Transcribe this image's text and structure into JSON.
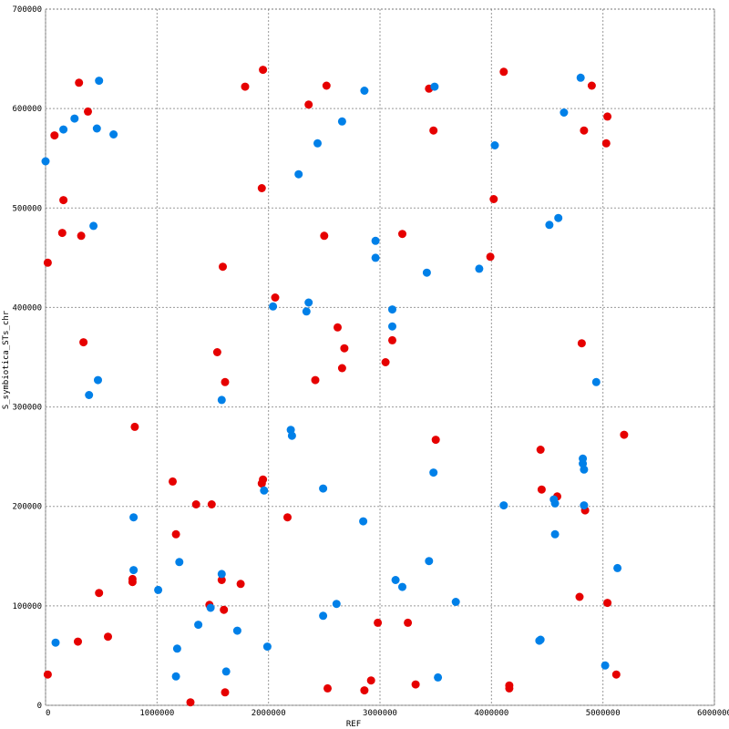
{
  "chart_data": {
    "type": "scatter",
    "title": "",
    "xlabel": "REF",
    "ylabel": "S_symbiotica_STs_chr",
    "xlim": [
      0,
      6000000
    ],
    "ylim": [
      0,
      700000
    ],
    "x_ticks": [
      0,
      1000000,
      2000000,
      3000000,
      4000000,
      5000000,
      6000000
    ],
    "y_ticks": [
      0,
      100000,
      200000,
      300000,
      400000,
      500000,
      600000,
      700000
    ],
    "x_tick_labels": [
      "0",
      "1000000",
      "2000000",
      "3000000",
      "4000000",
      "5000000",
      "6000000"
    ],
    "y_tick_labels": [
      "0",
      "100000",
      "200000",
      "300000",
      "400000",
      "500000",
      "600000",
      "700000"
    ],
    "grid": true,
    "series": [
      {
        "color": "#e60000",
        "points": [
          [
            20000,
            31000
          ],
          [
            20000,
            445000
          ],
          [
            80000,
            573000
          ],
          [
            150000,
            475000
          ],
          [
            160000,
            508000
          ],
          [
            300000,
            626000
          ],
          [
            320000,
            472000
          ],
          [
            340000,
            365000
          ],
          [
            380000,
            597000
          ],
          [
            290000,
            64000
          ],
          [
            480000,
            113000
          ],
          [
            560000,
            69000
          ],
          [
            780000,
            127000
          ],
          [
            780000,
            124000
          ],
          [
            800000,
            280000
          ],
          [
            1140000,
            225000
          ],
          [
            1170000,
            172000
          ],
          [
            1350000,
            202000
          ],
          [
            1300000,
            3000
          ],
          [
            1490000,
            202000
          ],
          [
            1470000,
            101000
          ],
          [
            1540000,
            355000
          ],
          [
            1580000,
            126000
          ],
          [
            1600000,
            96000
          ],
          [
            1590000,
            441000
          ],
          [
            1610000,
            325000
          ],
          [
            1610000,
            13000
          ],
          [
            1750000,
            122000
          ],
          [
            1790000,
            622000
          ],
          [
            1940000,
            520000
          ],
          [
            1950000,
            639000
          ],
          [
            1940000,
            223000
          ],
          [
            1950000,
            227000
          ],
          [
            2060000,
            410000
          ],
          [
            2170000,
            189000
          ],
          [
            2360000,
            604000
          ],
          [
            2420000,
            327000
          ],
          [
            2500000,
            472000
          ],
          [
            2520000,
            623000
          ],
          [
            2530000,
            17000
          ],
          [
            2620000,
            380000
          ],
          [
            2660000,
            339000
          ],
          [
            2680000,
            359000
          ],
          [
            2860000,
            15000
          ],
          [
            2920000,
            25000
          ],
          [
            2980000,
            83000
          ],
          [
            3050000,
            345000
          ],
          [
            3110000,
            367000
          ],
          [
            3200000,
            474000
          ],
          [
            3250000,
            83000
          ],
          [
            3320000,
            21000
          ],
          [
            3440000,
            620000
          ],
          [
            3480000,
            578000
          ],
          [
            3500000,
            267000
          ],
          [
            3990000,
            451000
          ],
          [
            4020000,
            509000
          ],
          [
            4110000,
            637000
          ],
          [
            4160000,
            20000
          ],
          [
            4160000,
            17000
          ],
          [
            4440000,
            257000
          ],
          [
            4450000,
            217000
          ],
          [
            4590000,
            210000
          ],
          [
            4790000,
            109000
          ],
          [
            4810000,
            364000
          ],
          [
            4830000,
            578000
          ],
          [
            4840000,
            196000
          ],
          [
            4900000,
            623000
          ],
          [
            5030000,
            565000
          ],
          [
            5040000,
            592000
          ],
          [
            5040000,
            103000
          ],
          [
            5120000,
            31000
          ],
          [
            5190000,
            272000
          ]
        ]
      },
      {
        "color": "#0080e8",
        "points": [
          [
            0,
            547000
          ],
          [
            90000,
            63000
          ],
          [
            160000,
            579000
          ],
          [
            260000,
            590000
          ],
          [
            390000,
            312000
          ],
          [
            430000,
            482000
          ],
          [
            460000,
            580000
          ],
          [
            470000,
            327000
          ],
          [
            480000,
            628000
          ],
          [
            610000,
            574000
          ],
          [
            790000,
            189000
          ],
          [
            790000,
            136000
          ],
          [
            1010000,
            116000
          ],
          [
            1170000,
            29000
          ],
          [
            1180000,
            57000
          ],
          [
            1200000,
            144000
          ],
          [
            1370000,
            81000
          ],
          [
            1480000,
            98000
          ],
          [
            1580000,
            307000
          ],
          [
            1580000,
            132000
          ],
          [
            1620000,
            34000
          ],
          [
            1720000,
            75000
          ],
          [
            1960000,
            216000
          ],
          [
            1990000,
            59000
          ],
          [
            2040000,
            401000
          ],
          [
            2200000,
            277000
          ],
          [
            2210000,
            271000
          ],
          [
            2270000,
            534000
          ],
          [
            2340000,
            396000
          ],
          [
            2360000,
            405000
          ],
          [
            2440000,
            565000
          ],
          [
            2490000,
            90000
          ],
          [
            2490000,
            218000
          ],
          [
            2610000,
            102000
          ],
          [
            2660000,
            587000
          ],
          [
            2850000,
            185000
          ],
          [
            2860000,
            618000
          ],
          [
            2960000,
            467000
          ],
          [
            2960000,
            450000
          ],
          [
            3110000,
            398000
          ],
          [
            3110000,
            381000
          ],
          [
            3140000,
            126000
          ],
          [
            3200000,
            119000
          ],
          [
            3420000,
            435000
          ],
          [
            3440000,
            145000
          ],
          [
            3480000,
            234000
          ],
          [
            3490000,
            622000
          ],
          [
            3520000,
            28000
          ],
          [
            3680000,
            104000
          ],
          [
            3890000,
            439000
          ],
          [
            4030000,
            563000
          ],
          [
            4110000,
            201000
          ],
          [
            4430000,
            65000
          ],
          [
            4440000,
            66000
          ],
          [
            4520000,
            483000
          ],
          [
            4560000,
            207000
          ],
          [
            4570000,
            203000
          ],
          [
            4570000,
            172000
          ],
          [
            4600000,
            490000
          ],
          [
            4650000,
            596000
          ],
          [
            4800000,
            631000
          ],
          [
            4820000,
            248000
          ],
          [
            4820000,
            243000
          ],
          [
            4830000,
            237000
          ],
          [
            4830000,
            201000
          ],
          [
            4940000,
            325000
          ],
          [
            5020000,
            40000
          ],
          [
            5130000,
            138000
          ]
        ]
      }
    ]
  }
}
